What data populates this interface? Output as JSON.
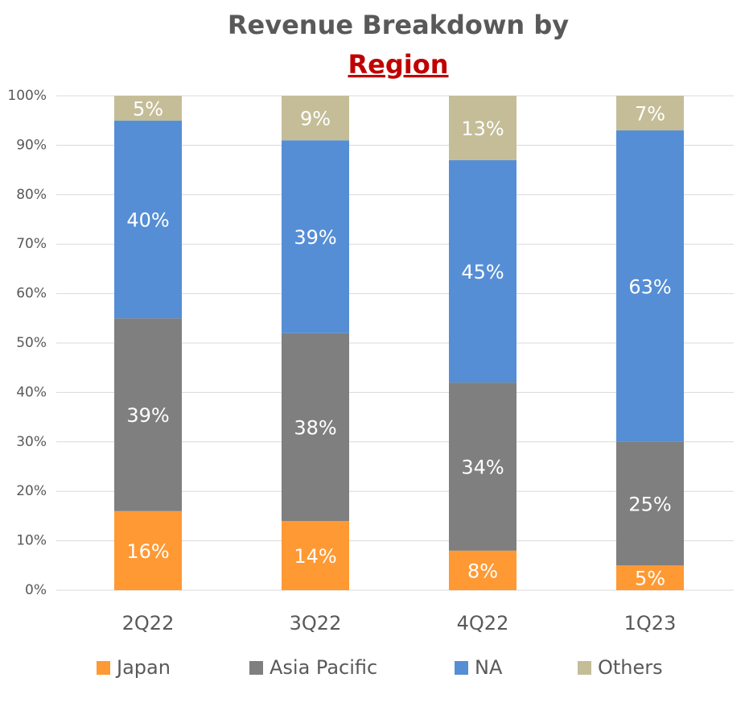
{
  "chart_data": {
    "type": "stacked-bar",
    "title": "Revenue Breakdown by",
    "title_highlight": "Region",
    "categories": [
      "2Q22",
      "3Q22",
      "4Q22",
      "1Q23"
    ],
    "series": [
      {
        "name": "Japan",
        "color": "#ff9933",
        "values": [
          16,
          14,
          8,
          5
        ],
        "value_labels": [
          "16%",
          "14%",
          "8%",
          "5%"
        ]
      },
      {
        "name": "Asia Pacific",
        "color": "#7f7f7f",
        "values": [
          39,
          38,
          34,
          25
        ],
        "value_labels": [
          "39%",
          "38%",
          "34%",
          "25%"
        ]
      },
      {
        "name": "NA",
        "color": "#558ed5",
        "values": [
          40,
          39,
          45,
          63
        ],
        "value_labels": [
          "40%",
          "39%",
          "45%",
          "63%"
        ]
      },
      {
        "name": "Others",
        "color": "#c4bd97",
        "values": [
          5,
          9,
          13,
          7
        ],
        "value_labels": [
          "5%",
          "9%",
          "13%",
          "7%"
        ]
      }
    ],
    "ylim": [
      0,
      100
    ],
    "yticks": [
      {
        "value": 0,
        "label": "0%"
      },
      {
        "value": 10,
        "label": "10%"
      },
      {
        "value": 20,
        "label": "20%"
      },
      {
        "value": 30,
        "label": "30%"
      },
      {
        "value": 40,
        "label": "40%"
      },
      {
        "value": 50,
        "label": "50%"
      },
      {
        "value": 60,
        "label": "60%"
      },
      {
        "value": 70,
        "label": "70%"
      },
      {
        "value": 80,
        "label": "80%"
      },
      {
        "value": 90,
        "label": "90%"
      },
      {
        "value": 100,
        "label": "100%"
      }
    ],
    "grid": true,
    "legend": "bottom"
  }
}
